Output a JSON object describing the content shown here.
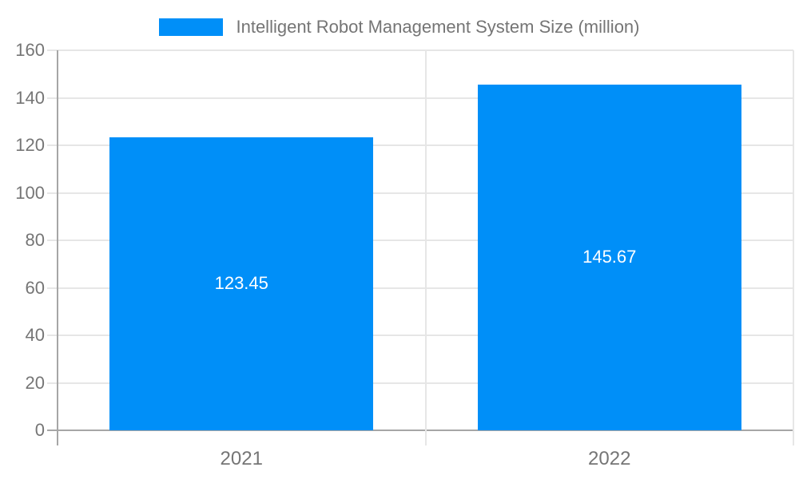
{
  "chart_data": {
    "type": "bar",
    "title": "Intelligent Robot Management System Size (million)",
    "categories": [
      "2021",
      "2022"
    ],
    "series": [
      {
        "name": "Intelligent Robot Management System Size (million)",
        "values": [
          123.45,
          145.67
        ]
      }
    ],
    "value_labels": [
      "123.45",
      "145.67"
    ],
    "xlabel": "",
    "ylabel": "",
    "ylim": [
      0,
      160
    ],
    "yticks": [
      0,
      20,
      40,
      60,
      80,
      100,
      120,
      140,
      160
    ],
    "grid": true,
    "legend_position": "top",
    "colors": {
      "bar": "#008ff8",
      "grid": "#e6e6e6",
      "axis": "#a6a6a6",
      "tick_label": "#757575",
      "value_label": "#ffffff",
      "background": "#ffffff"
    }
  }
}
